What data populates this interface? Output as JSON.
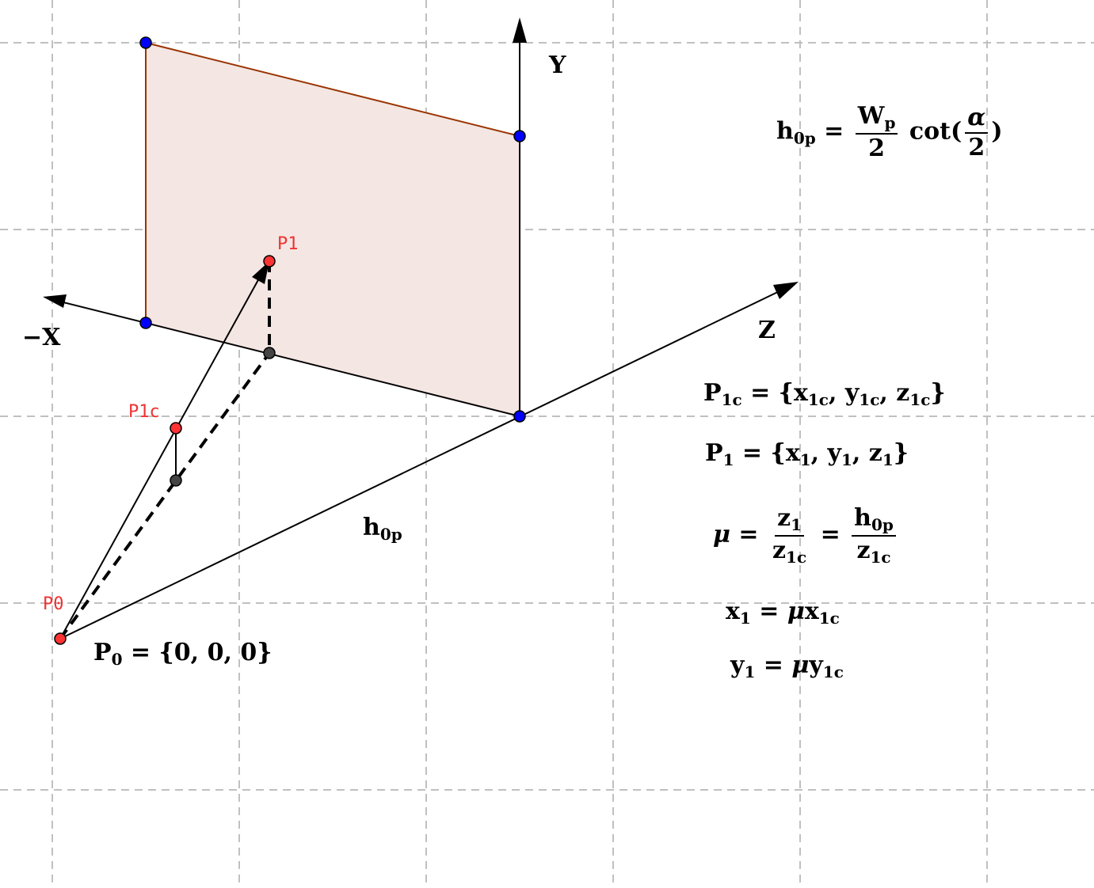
{
  "colors": {
    "grid": "#c0c0c0",
    "plane_fill": "#f4e6e2",
    "plane_edge": "#993300",
    "corner_point": "#0000ff",
    "key_point": "#ff3333",
    "helper_point": "#444444",
    "label_red": "#ee3333"
  },
  "axes": {
    "y_label": "Y",
    "neg_x_label": "−X",
    "z_label": "Z"
  },
  "points": {
    "p0": "P0",
    "p1": "P1",
    "p1c": "P1c"
  },
  "segment_label": {
    "base": "h",
    "sub": "0p"
  },
  "formulas": {
    "h0p": {
      "lhs": "h",
      "lhs_sub": "0p",
      "eq": " = ",
      "num": "W",
      "num_sub": "p",
      "den": "2",
      "func": " cot(",
      "alpha": "α",
      "alpha_den": "2",
      "close": ")"
    },
    "p1c_set": {
      "lhs": "P",
      "lhs_sub": "1c",
      "eq": " = {",
      "x": "x",
      "x_sub": "1c",
      "y": "y",
      "y_sub": "1c",
      "z": "z",
      "z_sub": "1c",
      "sep": ", ",
      "close": "}"
    },
    "p1_set": {
      "lhs": "P",
      "lhs_sub": "1",
      "eq": " = {",
      "x": "x",
      "x_sub": "1",
      "y": "y",
      "y_sub": "1",
      "z": "z",
      "z_sub": "1",
      "sep": ", ",
      "close": "}"
    },
    "mu": {
      "lhs": "μ",
      "eq": " = ",
      "n1": "z",
      "n1_sub": "1",
      "d1": "z",
      "d1_sub": "1c",
      "eq2": " = ",
      "n2": "h",
      "n2_sub": "0p",
      "d2": "z",
      "d2_sub": "1c"
    },
    "x1": {
      "lhs": "x",
      "lhs_sub": "1",
      "eq": " = ",
      "mu": "μ",
      "rhs": "x",
      "rhs_sub": "1c"
    },
    "y1": {
      "lhs": "y",
      "lhs_sub": "1",
      "eq": " = ",
      "mu": "μ",
      "rhs": "y",
      "rhs_sub": "1c"
    },
    "p0_set": {
      "lhs": "P",
      "lhs_sub": "0",
      "eq": " = ",
      "rhs": "{0, 0, 0}"
    }
  }
}
